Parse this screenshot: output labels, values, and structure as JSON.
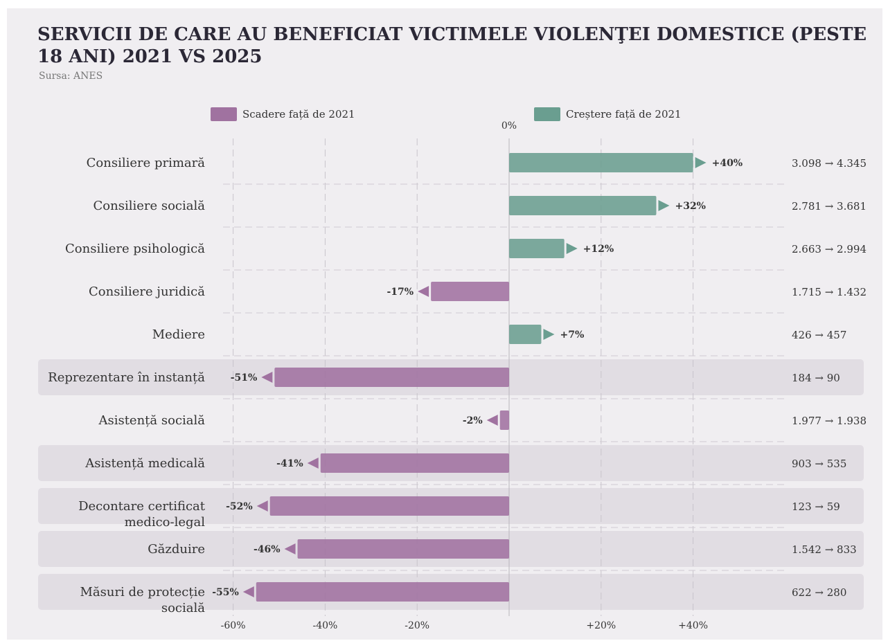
{
  "title": "SERVICII DE CARE AU BENEFICIAT VICTIMELE VIOLENŢEI DOMESTICE (PESTE 18 ANI) 2021 VS 2025",
  "source": "Sursa: ANES",
  "legend": {
    "decrease_label": "Scadere față de 2021",
    "increase_label": "Creștere față de 2021"
  },
  "colors": {
    "decrease": "#a072a0",
    "increase": "#6a9e90",
    "highlight_band": "#e1dde3",
    "background": "#f0eef1"
  },
  "chart_data": {
    "type": "bar",
    "orientation": "horizontal",
    "categories": [
      "Consiliere primară",
      "Consiliere socială",
      "Consiliere psihologică",
      "Consiliere juridică",
      "Mediere",
      "Reprezentare în instanță",
      "Asistență socială",
      "Asistență medicală",
      "Decontare certificat medico-legal",
      "Găzduire",
      "Măsuri de protecție socială"
    ],
    "values": [
      40,
      32,
      12,
      -17,
      7,
      -51,
      -2,
      -41,
      -52,
      -46,
      -55
    ],
    "value_labels": [
      "+40%",
      "+32%",
      "+12%",
      "-17%",
      "+7%",
      "-51%",
      "-2%",
      "-41%",
      "-52%",
      "-46%",
      "-55%"
    ],
    "change_labels": [
      "3.098 → 4.345",
      "2.781 → 3.681",
      "2.663 → 2.994",
      "1.715 → 1.432",
      "426 → 457",
      "184 → 90",
      "1.977 → 1.938",
      "903 → 535",
      "123 → 59",
      "1.542 → 833",
      "622 → 280"
    ],
    "highlighted": [
      false,
      false,
      false,
      false,
      false,
      true,
      false,
      true,
      true,
      true,
      true
    ],
    "xlim": [
      -60,
      40
    ],
    "xticks": [
      -60,
      -40,
      -20,
      20,
      40
    ],
    "xtick_labels": [
      "-60%",
      "-40%",
      "-20%",
      "+20%",
      "+40%"
    ],
    "zero_label": "0%",
    "grid": true,
    "legend_position": "top"
  }
}
